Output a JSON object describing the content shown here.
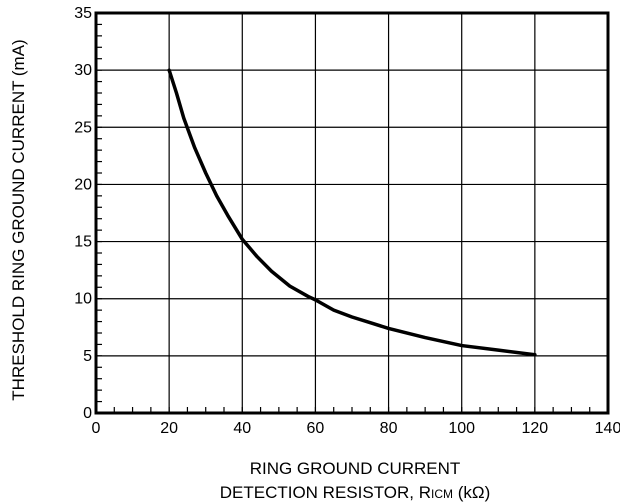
{
  "chart_data": {
    "type": "line",
    "xlabel_line1": "RING GROUND CURRENT",
    "xlabel_line2_prefix": "DETECTION RESISTOR, R",
    "xlabel_line2_sub": "ICM",
    "xlabel_line2_suffix": " (kΩ)",
    "ylabel": "THRESHOLD RING GROUND CURRENT (mA)",
    "xlim": [
      0,
      140
    ],
    "ylim": [
      0,
      35
    ],
    "x_ticks": [
      0,
      20,
      40,
      60,
      80,
      100,
      120,
      140
    ],
    "y_ticks": [
      0,
      5,
      10,
      15,
      20,
      25,
      30,
      35
    ],
    "grid": true,
    "series": [
      {
        "x": [
          20,
          22,
          24,
          27,
          30,
          33,
          36,
          40,
          44,
          48,
          53,
          58,
          60,
          65,
          70,
          75,
          80,
          90,
          100,
          110,
          120
        ],
        "y": [
          30,
          28,
          25.8,
          23.2,
          21,
          19,
          17.3,
          15.2,
          13.7,
          12.4,
          11.1,
          10.2,
          9.9,
          9.0,
          8.4,
          7.9,
          7.4,
          6.6,
          5.9,
          5.5,
          5.1
        ]
      }
    ]
  },
  "colors": {
    "line": "#000000",
    "grid": "#000000"
  }
}
